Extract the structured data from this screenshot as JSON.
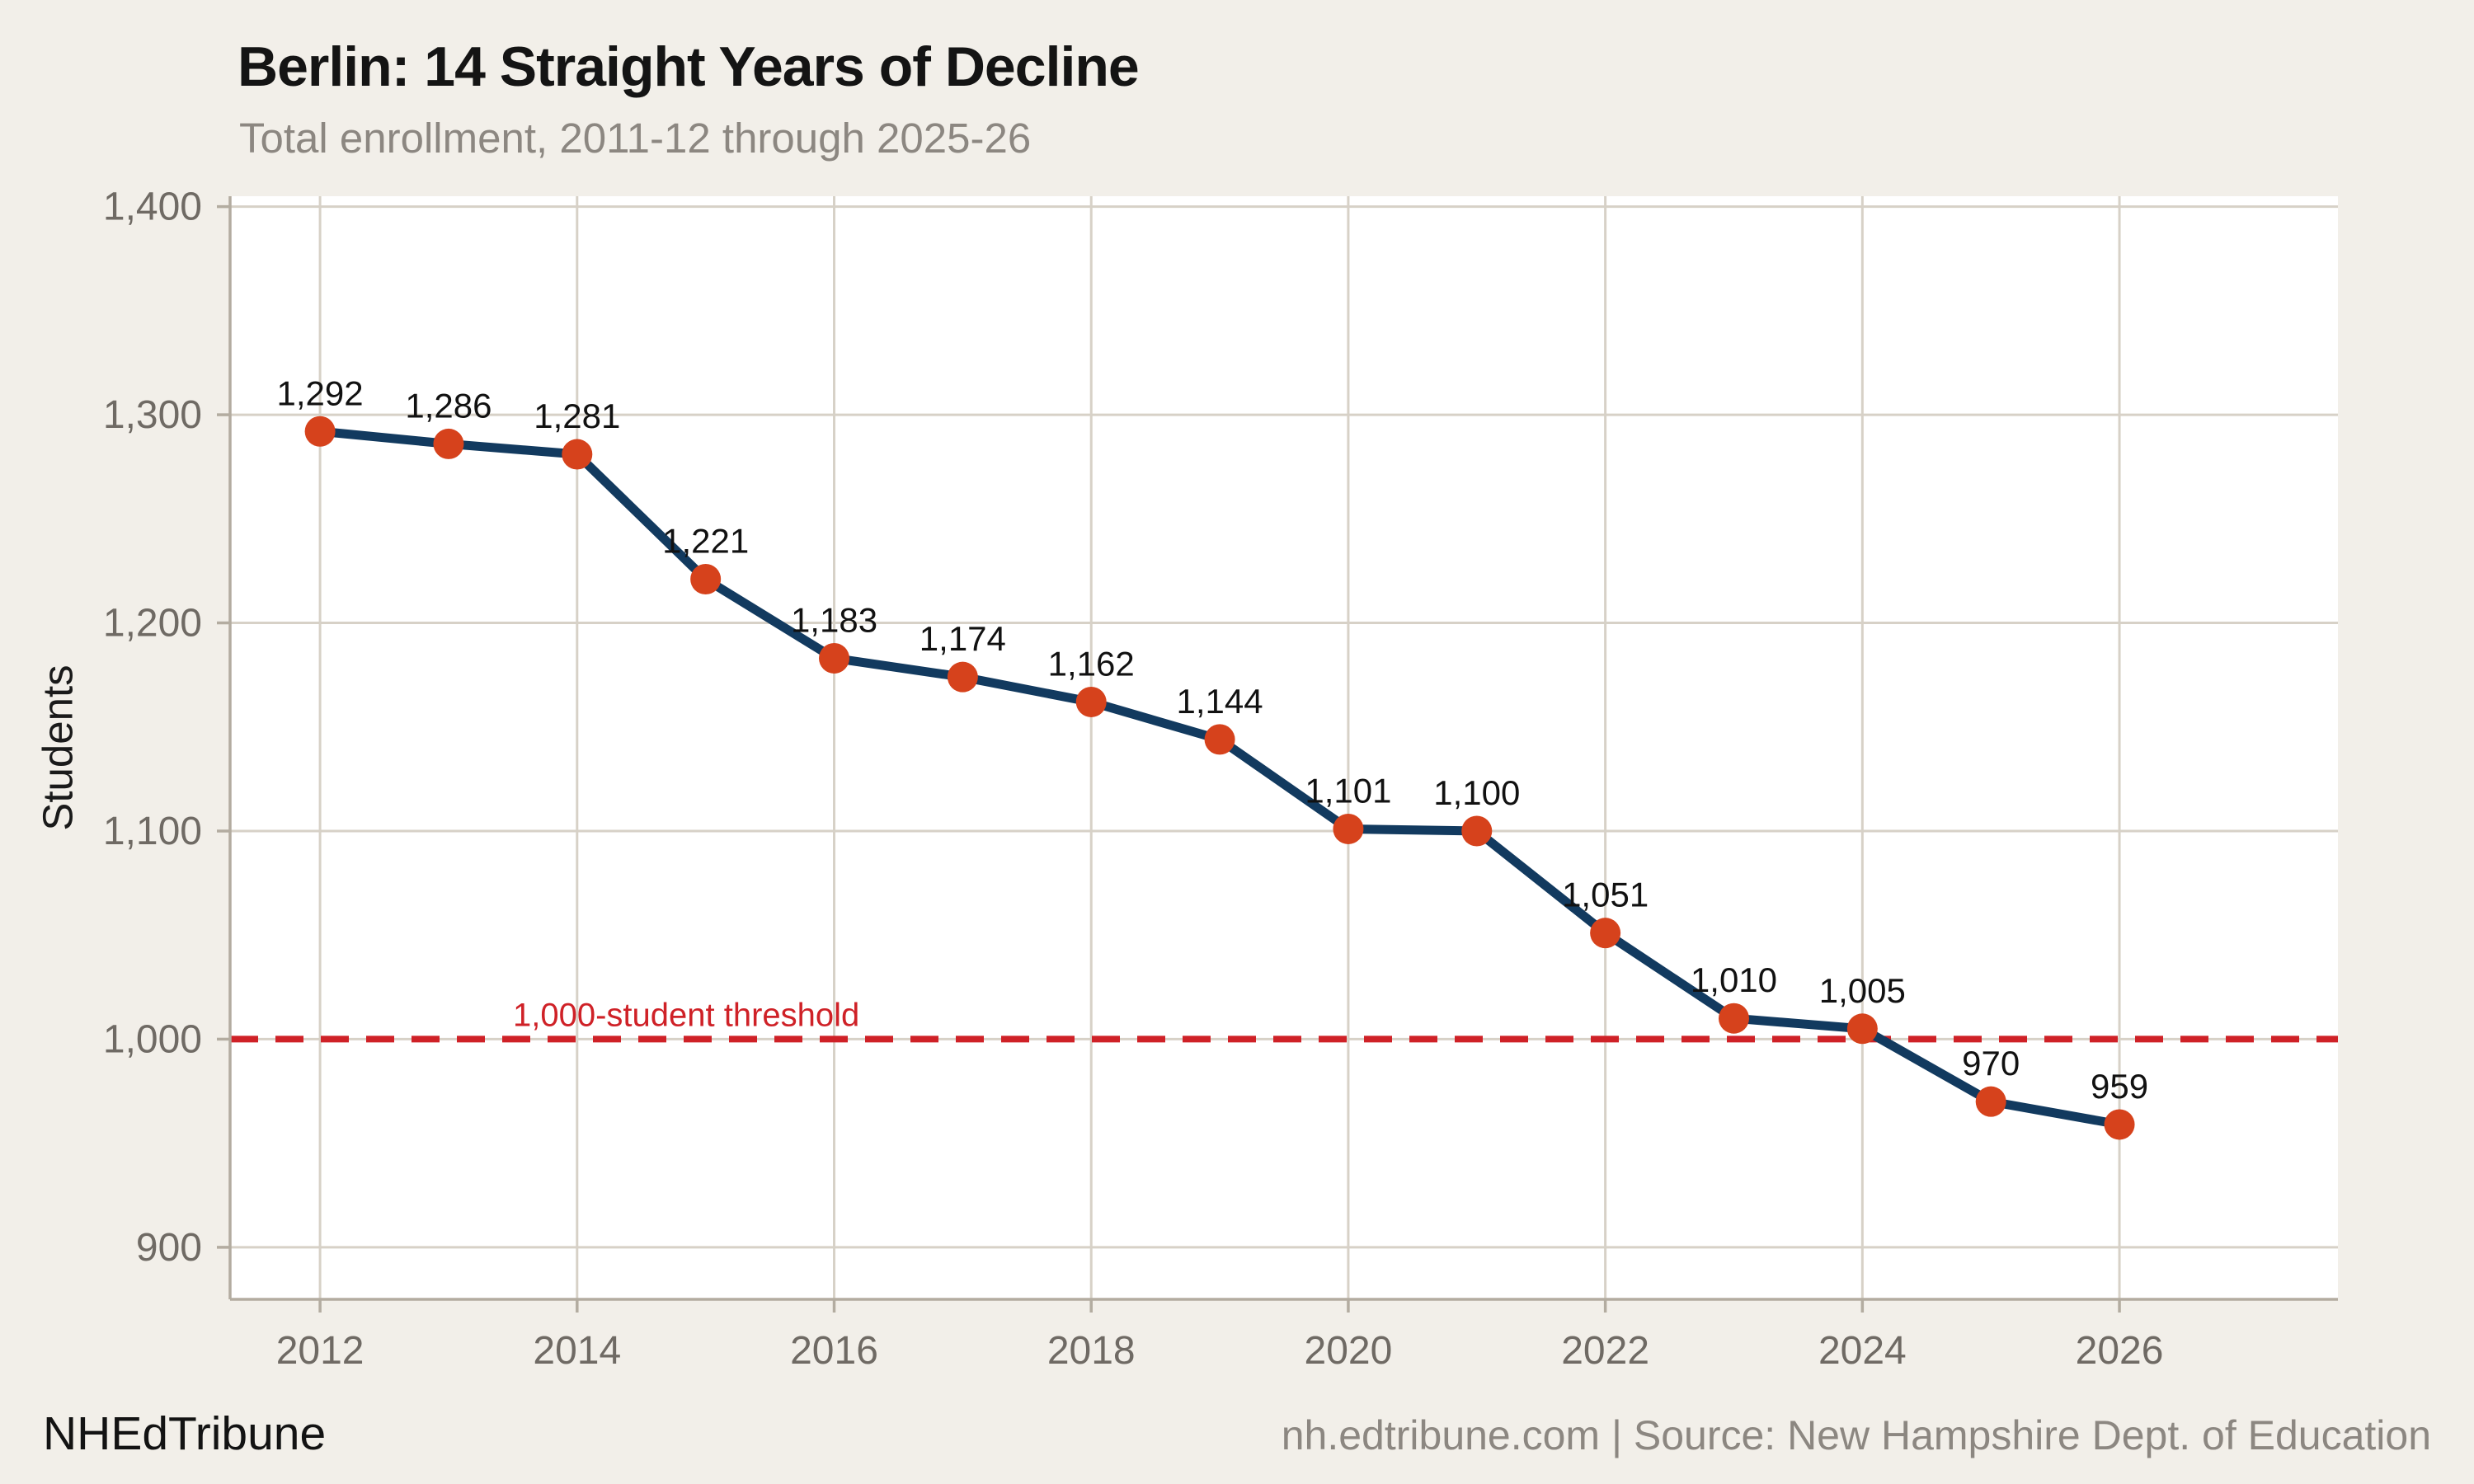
{
  "header": {
    "title": "Berlin: 14 Straight Years of Decline",
    "subtitle": "Total enrollment, 2011-12 through 2025-26"
  },
  "footer": {
    "brand": "NHEdTribune",
    "source": "nh.edtribune.com | Source: New Hampshire Dept. of Education"
  },
  "chart_data": {
    "type": "line",
    "title": "Berlin: 14 Straight Years of Decline",
    "subtitle": "Total enrollment, 2011-12 through 2025-26",
    "ylabel": "Students",
    "xlabel": "",
    "x": [
      2012,
      2013,
      2014,
      2015,
      2016,
      2017,
      2018,
      2019,
      2020,
      2021,
      2022,
      2023,
      2024,
      2025,
      2026
    ],
    "values": [
      1292,
      1286,
      1281,
      1221,
      1183,
      1174,
      1162,
      1144,
      1101,
      1100,
      1051,
      1010,
      1005,
      970,
      959
    ],
    "point_labels": [
      "1,292",
      "1,286",
      "1,281",
      "1,221",
      "1,183",
      "1,174",
      "1,162",
      "1,144",
      "1,101",
      "1,100",
      "1,051",
      "1,010",
      "1,005",
      "970",
      "959"
    ],
    "xticks": [
      2012,
      2014,
      2016,
      2018,
      2020,
      2022,
      2024,
      2026
    ],
    "xtick_labels": [
      "2012",
      "2014",
      "2016",
      "2018",
      "2020",
      "2022",
      "2024",
      "2026"
    ],
    "yticks": [
      900,
      1000,
      1100,
      1200,
      1300,
      1400
    ],
    "ytick_labels": [
      "900",
      "1,000",
      "1,100",
      "1,200",
      "1,300",
      "1,400"
    ],
    "xlim": [
      2011.3,
      2027.7
    ],
    "ylim": [
      875,
      1405
    ],
    "grid": "on",
    "legend": "none",
    "threshold": {
      "value": 1000,
      "label": "1,000-student threshold"
    },
    "colors": {
      "line": "#123a5f",
      "marker": "#d6421c",
      "threshold": "#cf2127",
      "grid": "#d7d1c7",
      "axis": "#b3aca0",
      "panel": "#ffffff",
      "background": "#f2efe9",
      "tick_text": "#6f6a64",
      "label_text": "#111111"
    }
  }
}
